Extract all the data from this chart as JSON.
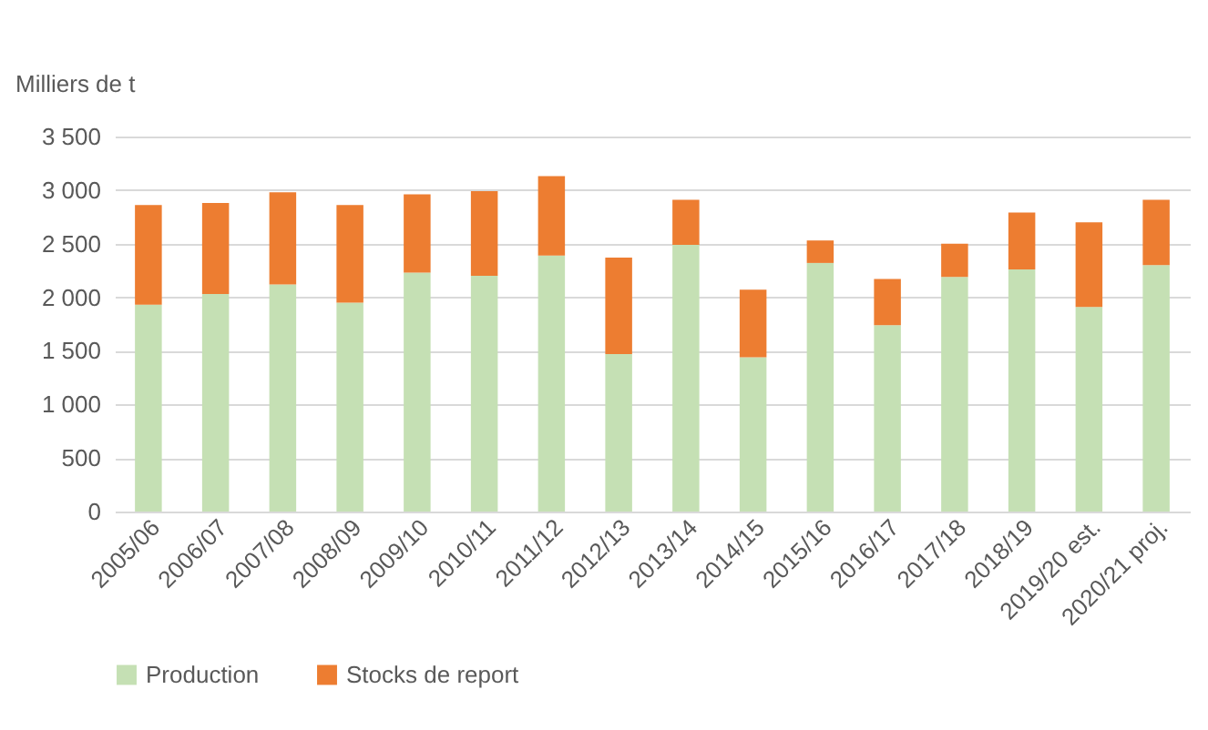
{
  "chart_data": {
    "type": "bar",
    "ylabel": "Milliers de t",
    "stacked": true,
    "categories": [
      "2005/06",
      "2006/07",
      "2007/08",
      "2008/09",
      "2009/10",
      "2010/11",
      "2011/12",
      "2012/13",
      "2013/14",
      "2014/15",
      "2015/16",
      "2016/17",
      "2017/18",
      "2018/19",
      "2019/20 est.",
      "2020/21 proj."
    ],
    "series": [
      {
        "name": "Production",
        "color": "#c5e0b4",
        "values": [
          1930,
          2030,
          2120,
          1950,
          2230,
          2200,
          2390,
          1470,
          2490,
          1440,
          2320,
          1740,
          2190,
          2260,
          1910,
          2300
        ]
      },
      {
        "name": "Stocks de report",
        "color": "#ed7d31",
        "values": [
          930,
          850,
          860,
          910,
          730,
          790,
          740,
          900,
          420,
          630,
          210,
          430,
          310,
          530,
          790,
          610
        ]
      }
    ],
    "ylim": [
      0,
      3500
    ],
    "yticks": [
      0,
      500,
      {
        "value": 1000,
        "label": "1 000"
      },
      {
        "value": 1500,
        "label": "1 500"
      },
      {
        "value": 2000,
        "label": "2 000"
      },
      {
        "value": 2500,
        "label": "2 500"
      },
      {
        "value": 3000,
        "label": "3 000"
      },
      {
        "value": 3500,
        "label": "3 500"
      }
    ],
    "grid": "y",
    "legend": "bottom"
  }
}
